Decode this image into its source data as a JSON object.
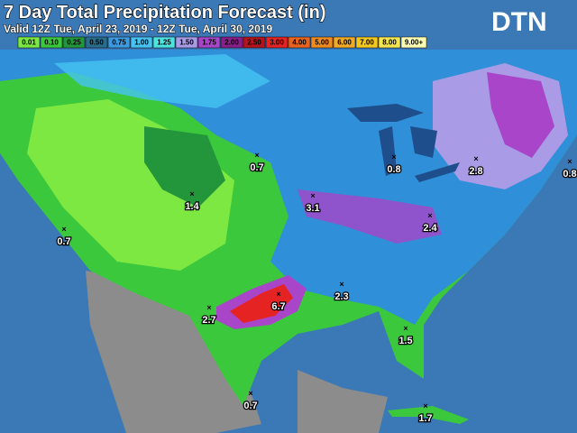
{
  "header": {
    "title": "7 Day Total Precipitation Forecast (in)",
    "subtitle": "Valid 12Z Tue, April 23, 2019 - 12Z Tue, April 30, 2019",
    "logo": "DTN"
  },
  "legend": {
    "items": [
      {
        "label": "0.01",
        "color": "#7ee843"
      },
      {
        "label": "0.10",
        "color": "#3cc83c"
      },
      {
        "label": "0.25",
        "color": "#23963c"
      },
      {
        "label": "0.50",
        "color": "#2a6e8c"
      },
      {
        "label": "0.75",
        "color": "#3d9be0"
      },
      {
        "label": "1.00",
        "color": "#45c3f2"
      },
      {
        "label": "1.25",
        "color": "#4fe3e0"
      },
      {
        "label": "1.50",
        "color": "#a99be6"
      },
      {
        "label": "1.75",
        "color": "#a845c8"
      },
      {
        "label": "2.00",
        "color": "#8a1e8a"
      },
      {
        "label": "2.50",
        "color": "#b4141e"
      },
      {
        "label": "3.00",
        "color": "#e62323"
      },
      {
        "label": "4.00",
        "color": "#e8641e"
      },
      {
        "label": "5.00",
        "color": "#f08c1e"
      },
      {
        "label": "6.00",
        "color": "#f0aa28"
      },
      {
        "label": "7.00",
        "color": "#f5c81e"
      },
      {
        "label": "8.00",
        "color": "#f5e650"
      },
      {
        "label": "9.00+",
        "color": "#ffffb4"
      }
    ]
  },
  "points": [
    {
      "label": "0.7"
    },
    {
      "label": "0.8"
    },
    {
      "label": "2.8"
    },
    {
      "label": "0.8"
    },
    {
      "label": "1.4"
    },
    {
      "label": "3.1"
    },
    {
      "label": "0.7"
    },
    {
      "label": "2.4"
    },
    {
      "label": "2.3"
    },
    {
      "label": "6.7"
    },
    {
      "label": "2.7"
    },
    {
      "label": "1.5"
    },
    {
      "label": "0.7"
    },
    {
      "label": "1.7"
    }
  ]
}
